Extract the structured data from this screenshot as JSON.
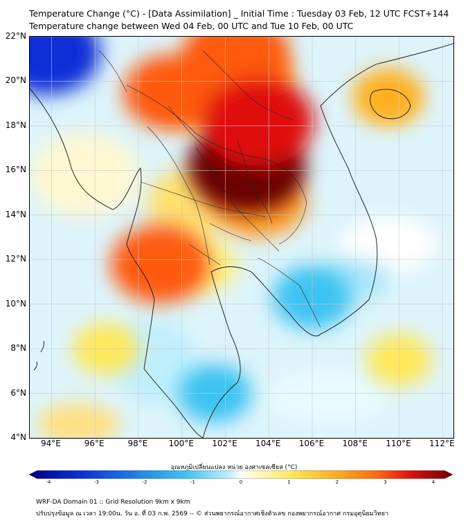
{
  "title_line1": "Temperature Change (°C) - [Data Assimilation] _ Initial Time : Tuesday 03 Feb, 12 UTC FCST+144",
  "title_line2": "Temperature change between Wed 04 Feb, 00 UTC and Tue 10 Feb, 00 UTC",
  "map": {
    "lat_range": [
      4,
      22
    ],
    "lon_range": [
      93,
      112.5
    ],
    "lat_labels": [
      "22°N",
      "20°N",
      "18°N",
      "16°N",
      "14°N",
      "12°N",
      "10°N",
      "8°N",
      "6°N",
      "4°N"
    ],
    "lon_labels": [
      "94°E",
      "96°E",
      "98°E",
      "100°E",
      "102°E",
      "104°E",
      "106°E",
      "108°E",
      "110°E",
      "112°E"
    ],
    "anomaly_regions": [
      {
        "label": "North Myanmar / Yunnan warming",
        "lon": 99.5,
        "lat": 19.5,
        "value": 2.4
      },
      {
        "label": "South China warming",
        "lon": 102.5,
        "lat": 21.2,
        "value": 3.0
      },
      {
        "label": "Northeast Thailand / Laos peak warming",
        "lon": 103.0,
        "lat": 16.2,
        "value": 3.6
      },
      {
        "label": "Central Laos warming",
        "lon": 103.5,
        "lat": 18.2,
        "value": 3.3
      },
      {
        "label": "Tanintharyi warming",
        "lon": 99.0,
        "lat": 11.8,
        "value": 2.6
      },
      {
        "label": "Bay of Bengal cooling",
        "lon": 93.8,
        "lat": 21.3,
        "value": -3.0
      },
      {
        "label": "Cambodia / Mekong delta cooling",
        "lon": 106.0,
        "lat": 10.3,
        "value": -1.6
      },
      {
        "label": "Malay Peninsula cooling",
        "lon": 101.5,
        "lat": 6.0,
        "value": -1.3
      },
      {
        "label": "Hainan warming",
        "lon": 109.5,
        "lat": 19.3,
        "value": 1.2
      },
      {
        "label": "Andaman Sea mild warming",
        "lon": 96.5,
        "lat": 8.0,
        "value": 0.9
      },
      {
        "label": "South China Sea mild warming",
        "lon": 110.0,
        "lat": 7.5,
        "value": 0.9
      }
    ]
  },
  "colorbar": {
    "title": "อุณหภูมิเปลี่ยนแปลง หน่วย องศาเซลเซียส (°C)",
    "min": -4,
    "max": 4,
    "ticks": [
      "-4",
      "-3",
      "-2",
      "-1",
      "0",
      "1",
      "2",
      "3",
      "4"
    ]
  },
  "footer_line1": "WRF-DA Domain 01 :: Grid Resolution 9km x 9km",
  "footer_line2": "ปรับปรุงข้อมูล ณ เวลา 19:00น. วัน อ. ที่ 03 ก.พ. 2569 -- © ส่วนพยากรณ์อากาศเชิงตัวเลข กองพยากรณ์อากาศ กรมอุตุนิยมวิทยา"
}
